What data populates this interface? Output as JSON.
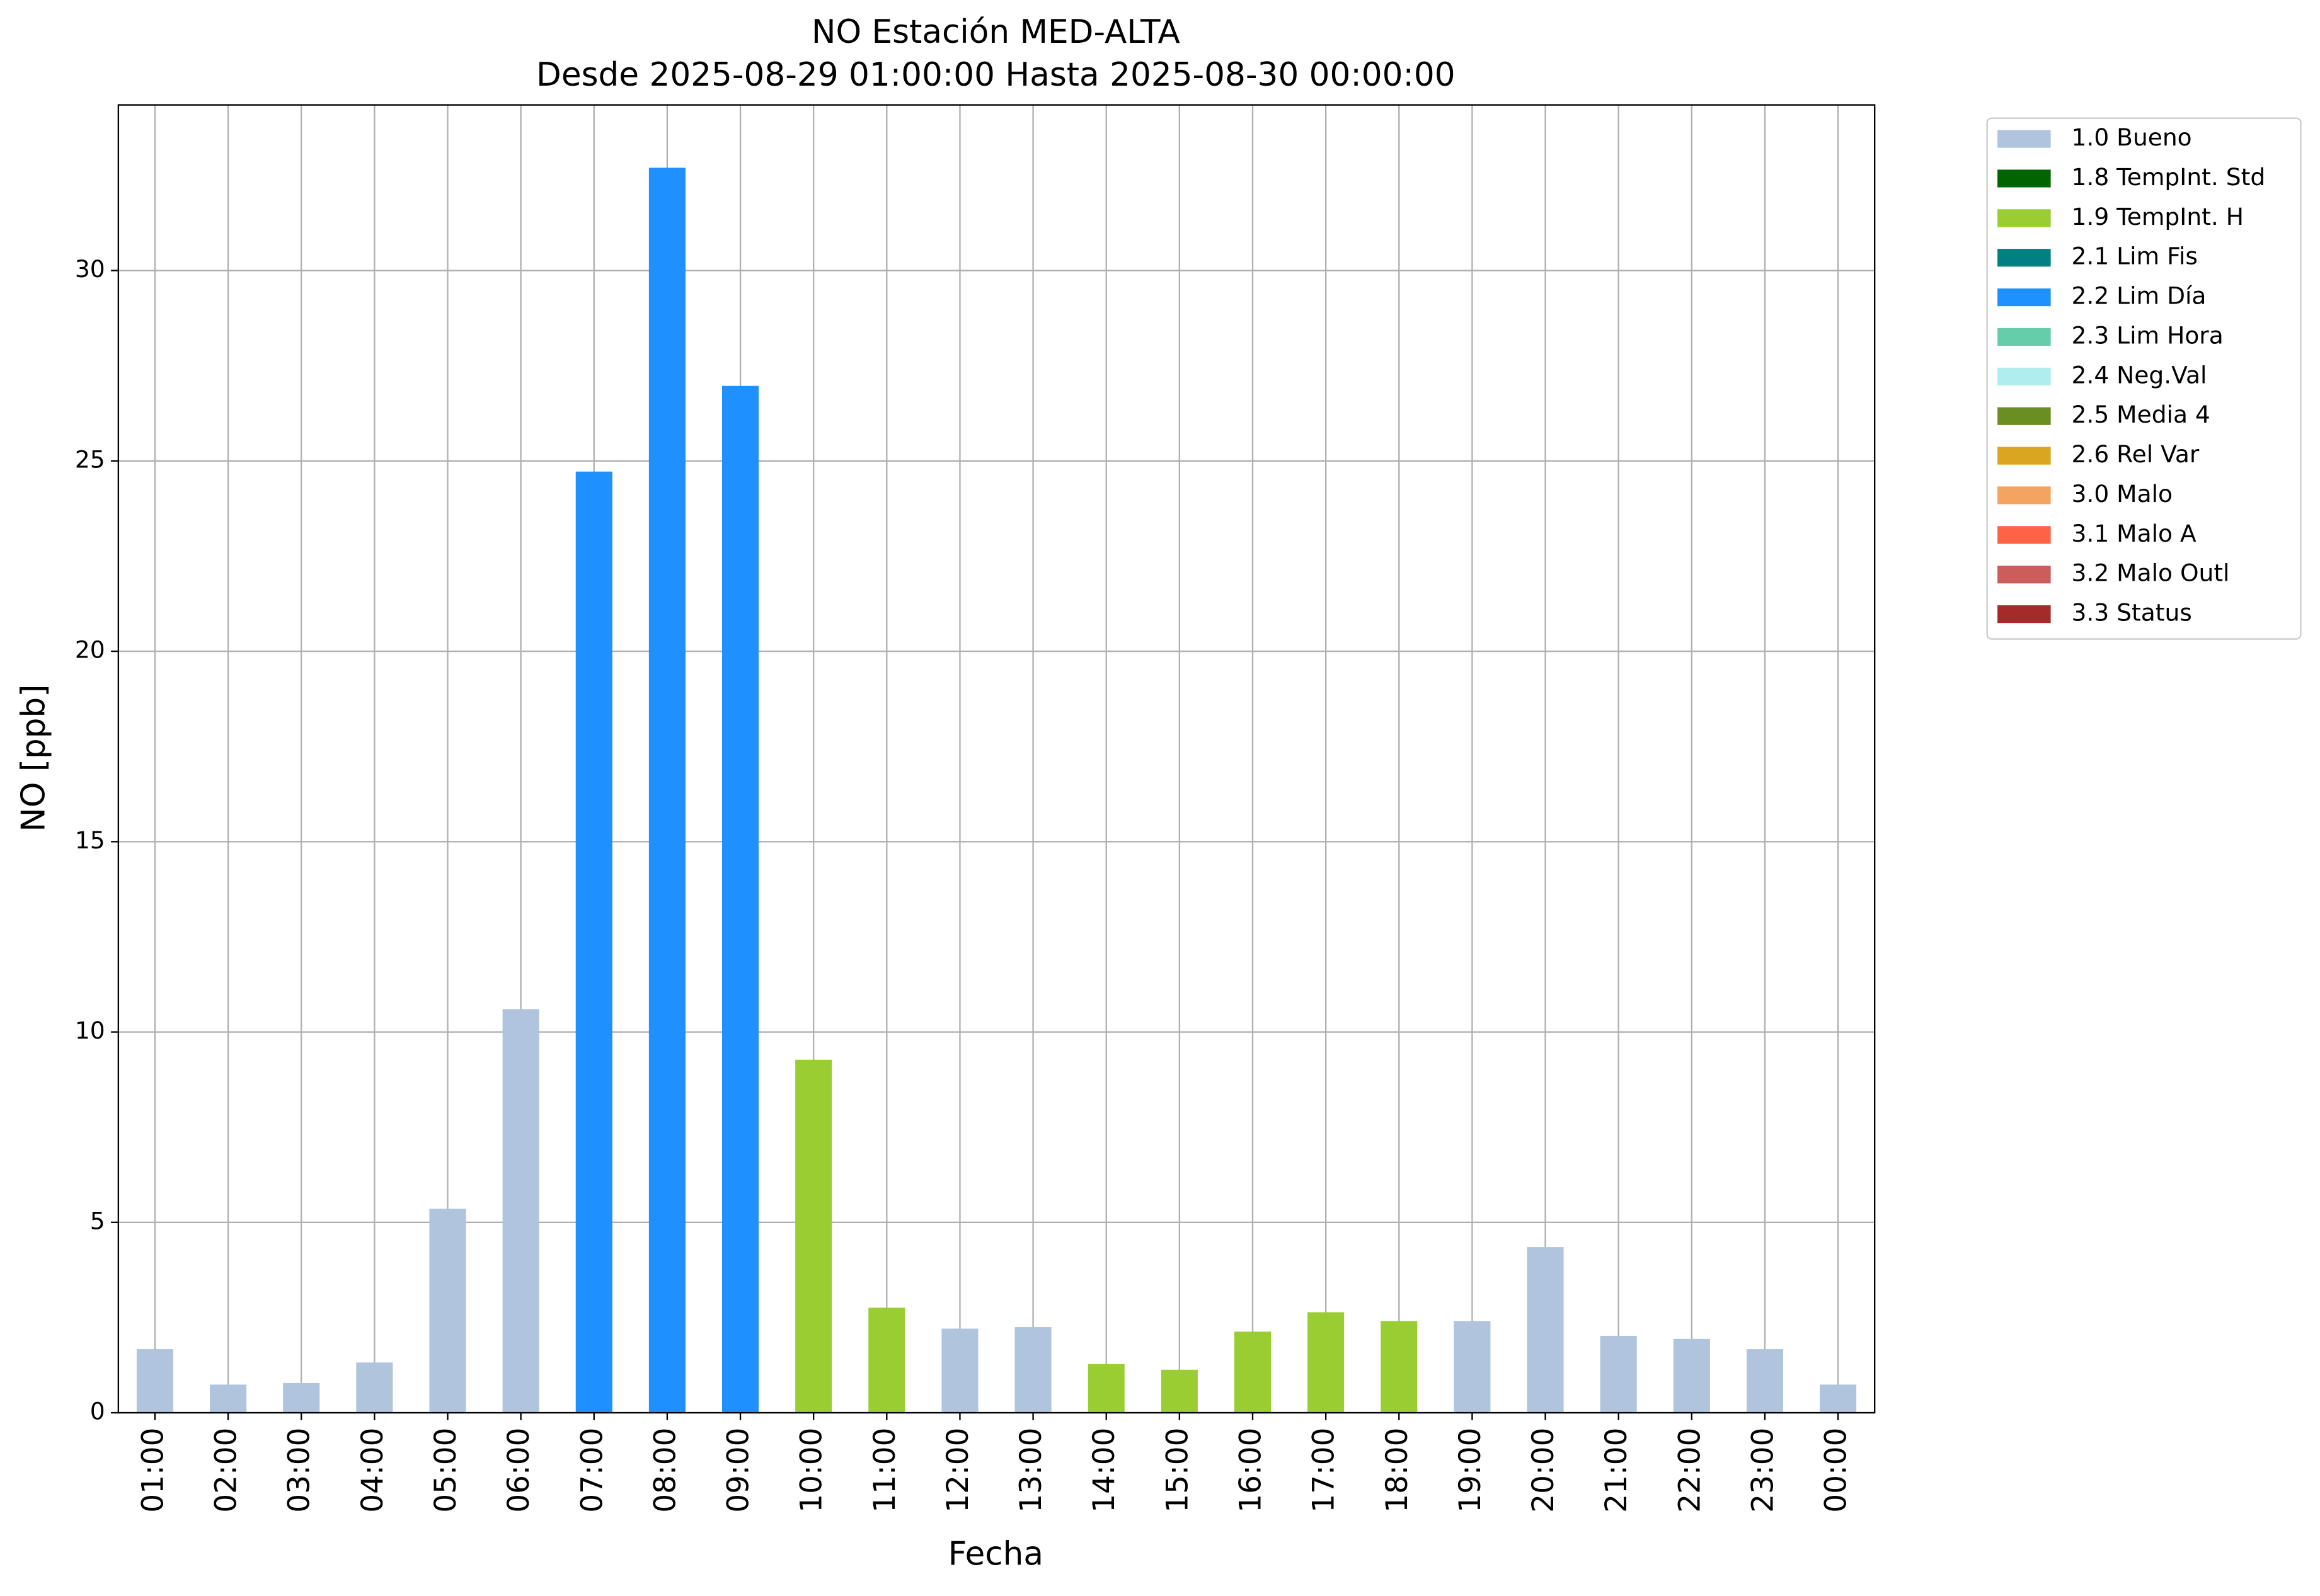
{
  "chart_data": {
    "type": "bar",
    "stacked": true,
    "title": "NO Estación MED-ALTA",
    "subtitle": "Desde 2025-08-29 01:00:00 Hasta 2025-08-30 00:00:00",
    "x_label": "Fecha",
    "y_label": "NO [ppb]",
    "categories": [
      "01:00",
      "02:00",
      "03:00",
      "04:00",
      "05:00",
      "06:00",
      "07:00",
      "08:00",
      "09:00",
      "10:00",
      "11:00",
      "12:00",
      "13:00",
      "14:00",
      "15:00",
      "16:00",
      "17:00",
      "18:00",
      "19:00",
      "20:00",
      "21:00",
      "22:00",
      "23:00",
      "00:00"
    ],
    "series": [
      {
        "name": "1.0 Bueno",
        "color": "#b0c4de",
        "values": [
          1.67,
          0.74,
          0.78,
          1.32,
          5.36,
          10.6,
          null,
          null,
          null,
          null,
          null,
          2.21,
          2.25,
          null,
          null,
          null,
          null,
          null,
          2.41,
          4.35,
          2.02,
          1.94,
          1.67,
          0.74
        ]
      },
      {
        "name": "1.8 TempInt. Std",
        "color": "#006400",
        "values": [
          null,
          null,
          null,
          null,
          null,
          null,
          null,
          null,
          null,
          null,
          null,
          null,
          null,
          null,
          null,
          null,
          null,
          null,
          null,
          null,
          null,
          null,
          null,
          null
        ]
      },
      {
        "name": "1.9 TempInt. H",
        "color": "#9acd32",
        "values": [
          null,
          null,
          null,
          null,
          null,
          null,
          null,
          null,
          null,
          9.27,
          2.76,
          null,
          null,
          1.28,
          1.13,
          2.13,
          2.64,
          2.41,
          null,
          null,
          null,
          null,
          null,
          null
        ]
      },
      {
        "name": "2.1 Lim Fis",
        "color": "#008080",
        "values": [
          null,
          null,
          null,
          null,
          null,
          null,
          null,
          null,
          null,
          null,
          null,
          null,
          null,
          null,
          null,
          null,
          null,
          null,
          null,
          null,
          null,
          null,
          null,
          null
        ]
      },
      {
        "name": "2.2 Lim Día",
        "color": "#1e90ff",
        "values": [
          null,
          null,
          null,
          null,
          null,
          null,
          24.72,
          32.7,
          26.97,
          null,
          null,
          null,
          null,
          null,
          null,
          null,
          null,
          null,
          null,
          null,
          null,
          null,
          null,
          null
        ]
      },
      {
        "name": "2.3 Lim Hora",
        "color": "#66cdaa",
        "values": [
          null,
          null,
          null,
          null,
          null,
          null,
          null,
          null,
          null,
          null,
          null,
          null,
          null,
          null,
          null,
          null,
          null,
          null,
          null,
          null,
          null,
          null,
          null,
          null
        ]
      },
      {
        "name": "2.4 Neg.Val",
        "color": "#afeeee",
        "values": [
          null,
          null,
          null,
          null,
          null,
          null,
          null,
          null,
          null,
          null,
          null,
          null,
          null,
          null,
          null,
          null,
          null,
          null,
          null,
          null,
          null,
          null,
          null,
          null
        ]
      },
      {
        "name": "2.5 Media 4",
        "color": "#6b8e23",
        "values": [
          null,
          null,
          null,
          null,
          null,
          null,
          null,
          null,
          null,
          null,
          null,
          null,
          null,
          null,
          null,
          null,
          null,
          null,
          null,
          null,
          null,
          null,
          null,
          null
        ]
      },
      {
        "name": "2.6 Rel Var",
        "color": "#daa520",
        "values": [
          null,
          null,
          null,
          null,
          null,
          null,
          null,
          null,
          null,
          null,
          null,
          null,
          null,
          null,
          null,
          null,
          null,
          null,
          null,
          null,
          null,
          null,
          null,
          null
        ]
      },
      {
        "name": "3.0 Malo",
        "color": "#f4a460",
        "values": [
          null,
          null,
          null,
          null,
          null,
          null,
          null,
          null,
          null,
          null,
          null,
          null,
          null,
          null,
          null,
          null,
          null,
          null,
          null,
          null,
          null,
          null,
          null,
          null
        ]
      },
      {
        "name": "3.1 Malo A",
        "color": "#ff6347",
        "values": [
          null,
          null,
          null,
          null,
          null,
          null,
          null,
          null,
          null,
          null,
          null,
          null,
          null,
          null,
          null,
          null,
          null,
          null,
          null,
          null,
          null,
          null,
          null,
          null
        ]
      },
      {
        "name": "3.2 Malo Outl",
        "color": "#cd5c5c",
        "values": [
          null,
          null,
          null,
          null,
          null,
          null,
          null,
          null,
          null,
          null,
          null,
          null,
          null,
          null,
          null,
          null,
          null,
          null,
          null,
          null,
          null,
          null,
          null,
          null
        ]
      },
      {
        "name": "3.3 Status",
        "color": "#a52a2a",
        "values": [
          null,
          null,
          null,
          null,
          null,
          null,
          null,
          null,
          null,
          null,
          null,
          null,
          null,
          null,
          null,
          null,
          null,
          null,
          null,
          null,
          null,
          null,
          null,
          null
        ]
      }
    ],
    "ylim": [
      0,
      34.35
    ],
    "yticks": [
      0,
      5,
      10,
      15,
      20,
      25,
      30
    ],
    "grid": true,
    "legend": "outside-upper-right"
  }
}
